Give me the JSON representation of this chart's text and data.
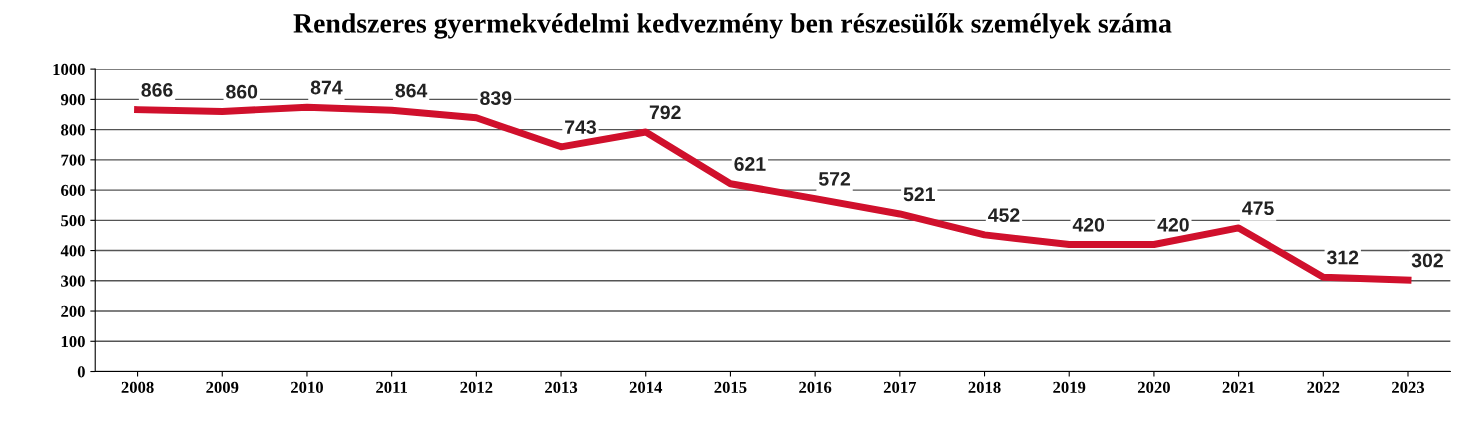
{
  "chart_data": {
    "type": "line",
    "title": "Rendszeres gyermekvédelmi kedvezmény ben részesülők személyek száma",
    "categories": [
      "2008",
      "2009",
      "2010",
      "2011",
      "2012",
      "2013",
      "2014",
      "2015",
      "2016",
      "2017",
      "2018",
      "2019",
      "2020",
      "2021",
      "2022",
      "2023"
    ],
    "series": [
      {
        "color": "#d0102c",
        "values": [
          866,
          860,
          874,
          864,
          839,
          743,
          792,
          621,
          572,
          521,
          452,
          420,
          420,
          475,
          312,
          302
        ]
      }
    ],
    "ylim": [
      0,
      1000
    ],
    "yticks": [
      0,
      100,
      200,
      300,
      400,
      500,
      600,
      700,
      800,
      900,
      1000
    ],
    "grid": "y",
    "data_labels": true,
    "marker": "none",
    "line_style": "solid",
    "legend": false
  }
}
